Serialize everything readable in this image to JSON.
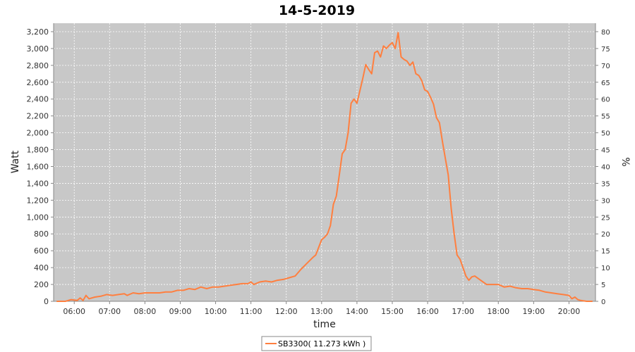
{
  "chart_data": {
    "type": "line",
    "title": "14-5-2019",
    "xlabel": "time",
    "ylabel": "Watt",
    "y2label": "%",
    "xlim": [
      "05:25",
      "20:45"
    ],
    "ylim": [
      0,
      3300
    ],
    "y2lim": [
      0,
      82.5
    ],
    "x_ticks": [
      "06:00",
      "07:00",
      "08:00",
      "09:00",
      "10:00",
      "11:00",
      "12:00",
      "13:00",
      "14:00",
      "15:00",
      "16:00",
      "17:00",
      "18:00",
      "19:00",
      "20:00"
    ],
    "y_ticks": [
      "0",
      "200",
      "400",
      "600",
      "800",
      "1,000",
      "1,200",
      "1,400",
      "1,600",
      "1,800",
      "2,000",
      "2,200",
      "2,400",
      "2,600",
      "2,800",
      "3,000",
      "3,200"
    ],
    "y2_ticks": [
      "0",
      "5",
      "10",
      "15",
      "20",
      "25",
      "30",
      "35",
      "40",
      "45",
      "50",
      "55",
      "60",
      "65",
      "70",
      "75",
      "80"
    ],
    "grid": true,
    "legend_position": "bottom",
    "colors": {
      "series": "#ff7f3f",
      "plot_bg": "#c8c8c8",
      "grid": "#ffffff"
    },
    "series": [
      {
        "name": "SB3300( 11.273 kWh )",
        "x": [
          "05:30",
          "05:45",
          "05:55",
          "06:05",
          "06:10",
          "06:15",
          "06:20",
          "06:25",
          "06:35",
          "06:45",
          "06:55",
          "07:05",
          "07:15",
          "07:25",
          "07:30",
          "07:40",
          "07:50",
          "08:00",
          "08:15",
          "08:25",
          "08:35",
          "08:45",
          "08:55",
          "09:05",
          "09:15",
          "09:25",
          "09:35",
          "09:45",
          "09:55",
          "10:05",
          "10:15",
          "10:25",
          "10:35",
          "10:45",
          "10:55",
          "11:00",
          "11:05",
          "11:15",
          "11:25",
          "11:35",
          "11:45",
          "11:55",
          "12:05",
          "12:15",
          "12:25",
          "12:35",
          "12:45",
          "12:50",
          "13:00",
          "13:05",
          "13:10",
          "13:15",
          "13:20",
          "13:25",
          "13:30",
          "13:35",
          "13:40",
          "13:45",
          "13:50",
          "13:55",
          "14:00",
          "14:05",
          "14:10",
          "14:15",
          "14:20",
          "14:25",
          "14:30",
          "14:35",
          "14:40",
          "14:45",
          "14:50",
          "14:55",
          "15:00",
          "15:05",
          "15:10",
          "15:15",
          "15:20",
          "15:25",
          "15:30",
          "15:35",
          "15:40",
          "15:45",
          "15:50",
          "15:55",
          "16:00",
          "16:05",
          "16:10",
          "16:15",
          "16:20",
          "16:25",
          "16:30",
          "16:35",
          "16:40",
          "16:45",
          "16:50",
          "16:55",
          "17:00",
          "17:05",
          "17:10",
          "17:15",
          "17:20",
          "17:30",
          "17:40",
          "17:50",
          "18:00",
          "18:10",
          "18:20",
          "18:30",
          "18:40",
          "18:50",
          "19:00",
          "19:10",
          "19:20",
          "19:30",
          "19:40",
          "19:50",
          "20:00",
          "20:05",
          "20:10",
          "20:15",
          "20:20",
          "20:30",
          "20:40"
        ],
        "values": [
          0,
          0,
          20,
          10,
          40,
          10,
          70,
          30,
          50,
          60,
          80,
          70,
          80,
          90,
          70,
          100,
          90,
          100,
          100,
          100,
          110,
          110,
          130,
          130,
          150,
          140,
          170,
          150,
          170,
          170,
          180,
          190,
          200,
          210,
          210,
          230,
          200,
          230,
          240,
          230,
          250,
          260,
          280,
          300,
          380,
          450,
          520,
          550,
          730,
          760,
          800,
          900,
          1150,
          1250,
          1500,
          1750,
          1800,
          2000,
          2350,
          2400,
          2350,
          2500,
          2650,
          2810,
          2750,
          2700,
          2950,
          2970,
          2900,
          3030,
          3000,
          3040,
          3070,
          3000,
          3190,
          2900,
          2870,
          2850,
          2800,
          2840,
          2700,
          2680,
          2620,
          2510,
          2490,
          2420,
          2340,
          2180,
          2120,
          1900,
          1700,
          1500,
          1100,
          800,
          550,
          500,
          400,
          300,
          250,
          290,
          300,
          250,
          200,
          200,
          200,
          170,
          180,
          160,
          150,
          150,
          140,
          130,
          110,
          100,
          90,
          80,
          70,
          30,
          50,
          20,
          10,
          0,
          0
        ]
      }
    ]
  }
}
